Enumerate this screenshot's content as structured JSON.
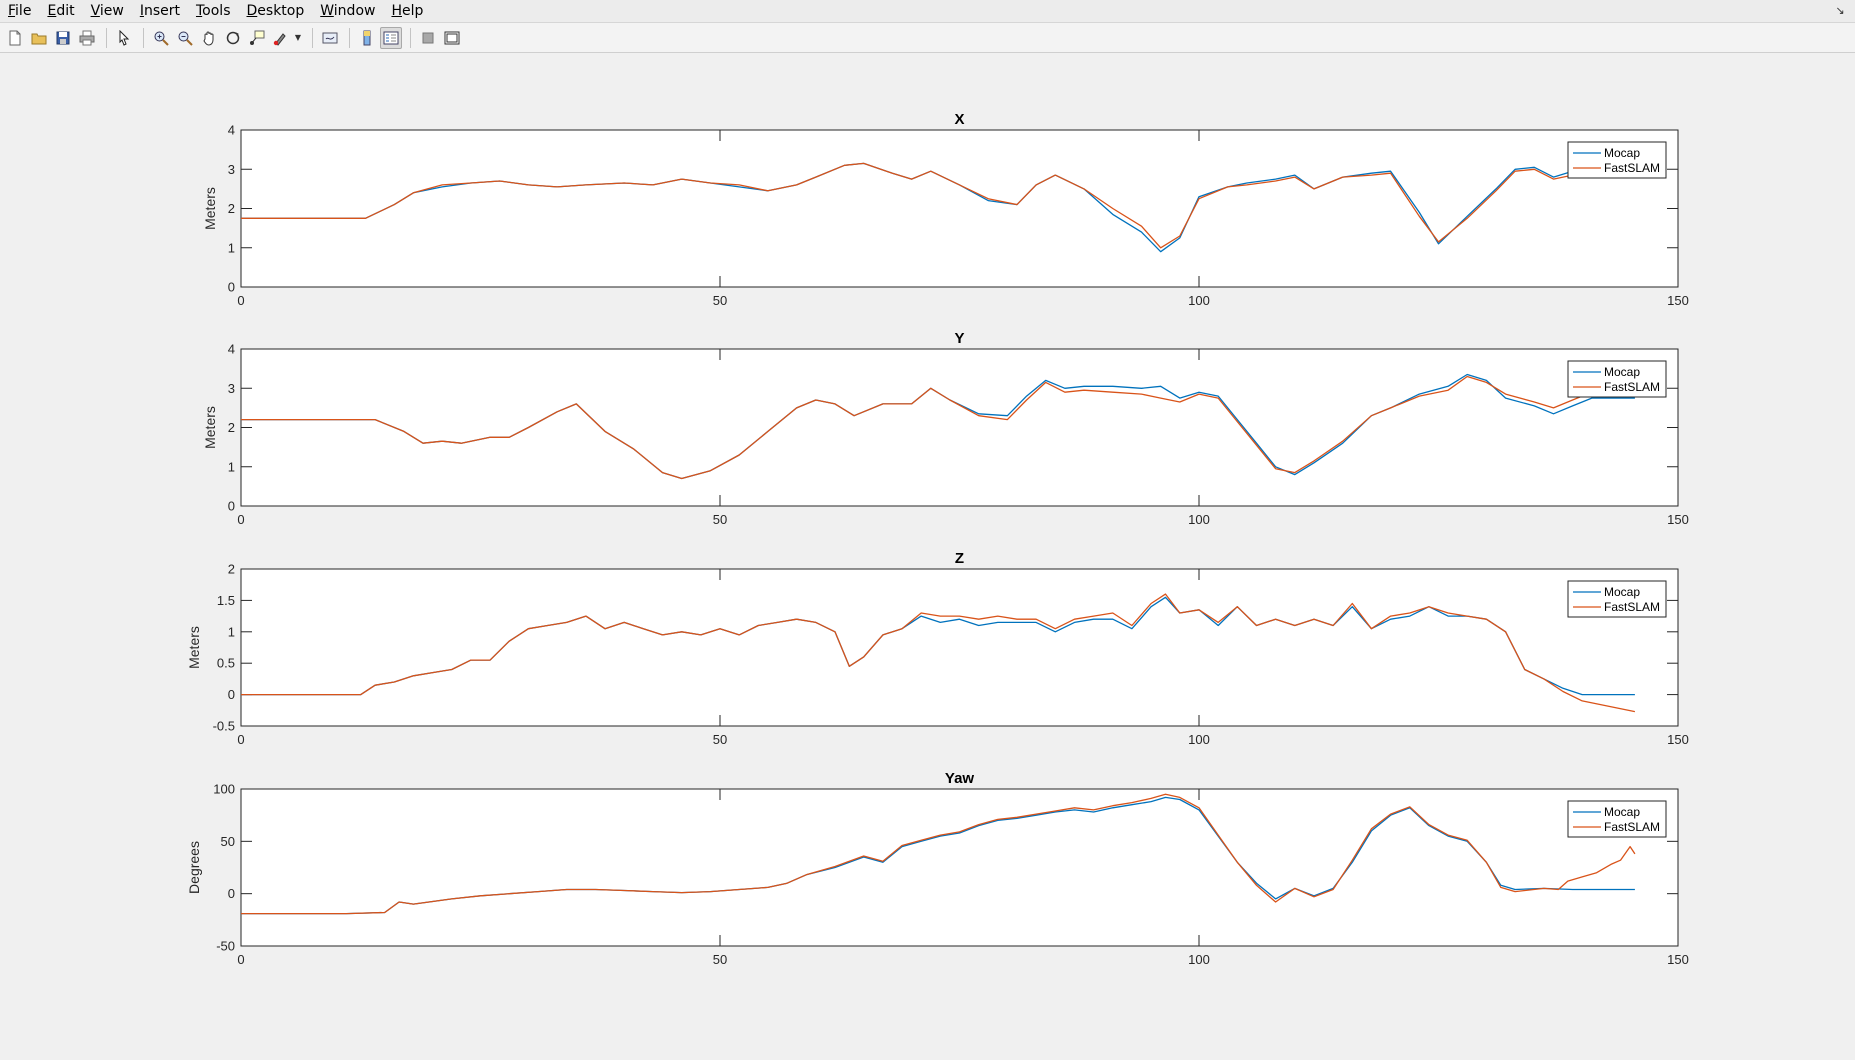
{
  "menu": {
    "items": [
      "File",
      "Edit",
      "View",
      "Insert",
      "Tools",
      "Desktop",
      "Window",
      "Help"
    ]
  },
  "toolbar": {
    "icons": [
      "new-figure-icon",
      "open-file-icon",
      "save-icon",
      "print-icon",
      "pointer-icon",
      "zoom-in-icon",
      "zoom-out-icon",
      "pan-icon",
      "rotate-3d-icon",
      "data-cursor-icon",
      "brush-icon",
      "link-plot-icon",
      "colorbar-icon",
      "legend-icon",
      "hide-plot-tools-icon",
      "show-plot-tools-icon"
    ]
  },
  "colors": {
    "mocap": "#0072BD",
    "fastslam": "#D95319",
    "axes_bg": "#ffffff",
    "figure_bg": "#f0f0f0"
  },
  "chart_data": [
    {
      "type": "line",
      "title": "X",
      "xlabel": "",
      "ylabel": "Meters",
      "xlim": [
        0,
        150
      ],
      "ylim": [
        0,
        4
      ],
      "xticks": [
        0,
        50,
        100,
        150
      ],
      "yticks": [
        0,
        1,
        2,
        3,
        4
      ],
      "legend_position": "top-right",
      "series": [
        {
          "name": "Mocap",
          "x": [
            0,
            13,
            16,
            18,
            21,
            24,
            27,
            30,
            33,
            36,
            40,
            43,
            46,
            49,
            52,
            55,
            58,
            60,
            63,
            65,
            68,
            70,
            72,
            75,
            78,
            81,
            83,
            85,
            88,
            91,
            94,
            96,
            98,
            100,
            103,
            105,
            108,
            110,
            112,
            115,
            118,
            120,
            123,
            125,
            128,
            131,
            133,
            135,
            137,
            139,
            140.5,
            145.5
          ],
          "y": [
            1.75,
            1.75,
            2.1,
            2.4,
            2.55,
            2.65,
            2.7,
            2.6,
            2.55,
            2.6,
            2.65,
            2.6,
            2.75,
            2.65,
            2.55,
            2.45,
            2.6,
            2.8,
            3.1,
            3.15,
            2.9,
            2.75,
            2.95,
            2.6,
            2.2,
            2.1,
            2.6,
            2.85,
            2.5,
            1.85,
            1.4,
            0.9,
            1.25,
            2.3,
            2.55,
            2.65,
            2.75,
            2.85,
            2.5,
            2.8,
            2.9,
            2.95,
            1.9,
            1.1,
            1.8,
            2.5,
            3.0,
            3.05,
            2.8,
            2.95,
            3.25,
            3.35
          ]
        },
        {
          "name": "FastSLAM",
          "x": [
            0,
            13,
            16,
            18,
            21,
            24,
            27,
            30,
            33,
            36,
            40,
            43,
            46,
            49,
            52,
            55,
            58,
            60,
            63,
            65,
            68,
            70,
            72,
            75,
            78,
            81,
            83,
            85,
            88,
            91,
            94,
            96,
            98,
            100,
            103,
            105,
            108,
            110,
            112,
            115,
            118,
            120,
            123,
            125,
            128,
            131,
            133,
            135,
            137,
            139,
            140.5,
            145.5
          ],
          "y": [
            1.75,
            1.75,
            2.1,
            2.4,
            2.6,
            2.65,
            2.7,
            2.6,
            2.55,
            2.6,
            2.65,
            2.6,
            2.75,
            2.65,
            2.6,
            2.45,
            2.6,
            2.8,
            3.1,
            3.15,
            2.9,
            2.75,
            2.95,
            2.6,
            2.25,
            2.1,
            2.6,
            2.85,
            2.5,
            2.0,
            1.55,
            1.0,
            1.3,
            2.25,
            2.55,
            2.6,
            2.7,
            2.8,
            2.5,
            2.8,
            2.85,
            2.9,
            1.8,
            1.15,
            1.75,
            2.45,
            2.95,
            3.0,
            2.75,
            2.85,
            3.1,
            3.2
          ]
        }
      ]
    },
    {
      "type": "line",
      "title": "Y",
      "xlabel": "",
      "ylabel": "Meters",
      "xlim": [
        0,
        150
      ],
      "ylim": [
        0,
        4
      ],
      "xticks": [
        0,
        50,
        100,
        150
      ],
      "yticks": [
        0,
        1,
        2,
        3,
        4
      ],
      "legend_position": "top-right",
      "series": [
        {
          "name": "Mocap",
          "x": [
            0,
            14,
            17,
            19,
            21,
            23,
            26,
            28,
            30,
            33,
            35,
            38,
            41,
            44,
            46,
            49,
            52,
            55,
            58,
            60,
            62,
            64,
            67,
            70,
            72,
            74,
            77,
            80,
            82,
            84,
            86,
            88,
            91,
            94,
            96,
            98,
            100,
            102,
            104,
            106,
            108,
            110,
            112,
            115,
            118,
            120,
            123,
            126,
            128,
            130,
            132,
            135,
            137,
            139,
            141,
            145.5
          ],
          "y": [
            2.2,
            2.2,
            1.9,
            1.6,
            1.65,
            1.6,
            1.75,
            1.75,
            2.0,
            2.4,
            2.6,
            1.9,
            1.45,
            0.85,
            0.7,
            0.9,
            1.3,
            1.9,
            2.5,
            2.7,
            2.6,
            2.3,
            2.6,
            2.6,
            3.0,
            2.7,
            2.35,
            2.3,
            2.8,
            3.2,
            3.0,
            3.05,
            3.05,
            3.0,
            3.05,
            2.75,
            2.9,
            2.8,
            2.2,
            1.6,
            1.0,
            0.8,
            1.1,
            1.6,
            2.3,
            2.5,
            2.85,
            3.05,
            3.35,
            3.2,
            2.75,
            2.55,
            2.35,
            2.55,
            2.75,
            2.75
          ]
        },
        {
          "name": "FastSLAM",
          "x": [
            0,
            14,
            17,
            19,
            21,
            23,
            26,
            28,
            30,
            33,
            35,
            38,
            41,
            44,
            46,
            49,
            52,
            55,
            58,
            60,
            62,
            64,
            67,
            70,
            72,
            74,
            77,
            80,
            82,
            84,
            86,
            88,
            91,
            94,
            96,
            98,
            100,
            102,
            104,
            106,
            108,
            110,
            112,
            115,
            118,
            120,
            123,
            126,
            128,
            130,
            132,
            135,
            137,
            139,
            141,
            145.5
          ],
          "y": [
            2.2,
            2.2,
            1.9,
            1.6,
            1.65,
            1.6,
            1.75,
            1.75,
            2.0,
            2.4,
            2.6,
            1.9,
            1.45,
            0.85,
            0.7,
            0.9,
            1.3,
            1.9,
            2.5,
            2.7,
            2.6,
            2.3,
            2.6,
            2.6,
            3.0,
            2.7,
            2.3,
            2.2,
            2.7,
            3.15,
            2.9,
            2.95,
            2.9,
            2.85,
            2.75,
            2.65,
            2.85,
            2.75,
            2.15,
            1.55,
            0.95,
            0.85,
            1.15,
            1.65,
            2.3,
            2.5,
            2.8,
            2.95,
            3.3,
            3.15,
            2.85,
            2.65,
            2.5,
            2.7,
            2.9,
            3.0
          ]
        }
      ]
    },
    {
      "type": "line",
      "title": "Z",
      "xlabel": "",
      "ylabel": "Meters",
      "xlim": [
        0,
        150
      ],
      "ylim": [
        -0.5,
        2
      ],
      "xticks": [
        0,
        50,
        100,
        150
      ],
      "yticks": [
        -0.5,
        0,
        0.5,
        1,
        1.5,
        2
      ],
      "legend_position": "top-right",
      "series": [
        {
          "name": "Mocap",
          "x": [
            0,
            12.5,
            14,
            16,
            18,
            20,
            22,
            24,
            26,
            28,
            30,
            32,
            34,
            36,
            38,
            40,
            42,
            44,
            46,
            48,
            50,
            52,
            54,
            56,
            58,
            60,
            62,
            63.5,
            65,
            67,
            69,
            71,
            73,
            75,
            77,
            79,
            81,
            83,
            85,
            87,
            89,
            91,
            93,
            95,
            96.5,
            98,
            100,
            102,
            104,
            106,
            108,
            110,
            112,
            114,
            116,
            118,
            120,
            122,
            124,
            126,
            128,
            130,
            132,
            134,
            136,
            138,
            140,
            145.5
          ],
          "y": [
            0,
            0,
            0.15,
            0.2,
            0.3,
            0.35,
            0.4,
            0.55,
            0.55,
            0.85,
            1.05,
            1.1,
            1.15,
            1.25,
            1.05,
            1.15,
            1.05,
            0.95,
            1.0,
            0.95,
            1.05,
            0.95,
            1.1,
            1.15,
            1.2,
            1.15,
            1.0,
            0.45,
            0.6,
            0.95,
            1.05,
            1.25,
            1.15,
            1.2,
            1.1,
            1.15,
            1.15,
            1.15,
            1.0,
            1.15,
            1.2,
            1.2,
            1.05,
            1.4,
            1.55,
            1.3,
            1.35,
            1.1,
            1.4,
            1.1,
            1.2,
            1.1,
            1.2,
            1.1,
            1.4,
            1.05,
            1.2,
            1.25,
            1.4,
            1.25,
            1.25,
            1.2,
            1.0,
            0.4,
            0.25,
            0.1,
            0.0,
            0.0
          ]
        },
        {
          "name": "FastSLAM",
          "x": [
            0,
            12.5,
            14,
            16,
            18,
            20,
            22,
            24,
            26,
            28,
            30,
            32,
            34,
            36,
            38,
            40,
            42,
            44,
            46,
            48,
            50,
            52,
            54,
            56,
            58,
            60,
            62,
            63.5,
            65,
            67,
            69,
            71,
            73,
            75,
            77,
            79,
            81,
            83,
            85,
            87,
            89,
            91,
            93,
            95,
            96.5,
            98,
            100,
            102,
            104,
            106,
            108,
            110,
            112,
            114,
            116,
            118,
            120,
            122,
            124,
            126,
            128,
            130,
            132,
            134,
            136,
            138,
            140,
            145.5
          ],
          "y": [
            0,
            0,
            0.15,
            0.2,
            0.3,
            0.35,
            0.4,
            0.55,
            0.55,
            0.85,
            1.05,
            1.1,
            1.15,
            1.25,
            1.05,
            1.15,
            1.05,
            0.95,
            1.0,
            0.95,
            1.05,
            0.95,
            1.1,
            1.15,
            1.2,
            1.15,
            1.0,
            0.45,
            0.6,
            0.95,
            1.05,
            1.3,
            1.25,
            1.25,
            1.2,
            1.25,
            1.2,
            1.2,
            1.05,
            1.2,
            1.25,
            1.3,
            1.1,
            1.45,
            1.6,
            1.3,
            1.35,
            1.15,
            1.4,
            1.1,
            1.2,
            1.1,
            1.2,
            1.1,
            1.45,
            1.05,
            1.25,
            1.3,
            1.4,
            1.3,
            1.25,
            1.2,
            1.0,
            0.4,
            0.25,
            0.05,
            -0.1,
            -0.27
          ]
        }
      ]
    },
    {
      "type": "line",
      "title": "Yaw",
      "xlabel": "",
      "ylabel": "Degrees",
      "xlim": [
        0,
        150
      ],
      "ylim": [
        -50,
        100
      ],
      "xticks": [
        0,
        50,
        100,
        150
      ],
      "yticks": [
        -50,
        0,
        50,
        100
      ],
      "legend_position": "top-right",
      "series": [
        {
          "name": "Mocap",
          "x": [
            0,
            11,
            15,
            16.5,
            18,
            22,
            25,
            28,
            31,
            34,
            37,
            40,
            43,
            46,
            49,
            52,
            55,
            57,
            59,
            62,
            65,
            67,
            69,
            71,
            73,
            75,
            77,
            79,
            81,
            83,
            85,
            87,
            89,
            91,
            93,
            95,
            96.5,
            98,
            100,
            102,
            104,
            106,
            108,
            110,
            112,
            114,
            116,
            118,
            120,
            122,
            124,
            126,
            128,
            130,
            131.5,
            133,
            136,
            139,
            142,
            145.5
          ],
          "y": [
            -19,
            -19,
            -18,
            -8,
            -10,
            -5,
            -2,
            0,
            2,
            4,
            4,
            3,
            2,
            1,
            2,
            4,
            6,
            10,
            18,
            25,
            35,
            30,
            45,
            50,
            55,
            58,
            65,
            70,
            72,
            75,
            78,
            80,
            78,
            82,
            85,
            88,
            92,
            90,
            80,
            55,
            30,
            10,
            -5,
            5,
            -2,
            5,
            30,
            60,
            75,
            82,
            65,
            55,
            50,
            30,
            8,
            4,
            5,
            4,
            4,
            4
          ]
        },
        {
          "name": "FastSLAM",
          "x": [
            0,
            11,
            15,
            16.5,
            18,
            22,
            25,
            28,
            31,
            34,
            37,
            40,
            43,
            46,
            49,
            52,
            55,
            57,
            59,
            62,
            65,
            67,
            69,
            71,
            73,
            75,
            77,
            79,
            81,
            83,
            85,
            87,
            89,
            91,
            93,
            95,
            96.5,
            98,
            100,
            102,
            104,
            106,
            108,
            110,
            112,
            114,
            116,
            118,
            120,
            122,
            124,
            126,
            128,
            130,
            131.5,
            133,
            136,
            137.5,
            138.5,
            140,
            141.5,
            143,
            144,
            145,
            145.5
          ],
          "y": [
            -19,
            -19,
            -18,
            -8,
            -10,
            -5,
            -2,
            0,
            2,
            4,
            4,
            3,
            2,
            1,
            2,
            4,
            6,
            10,
            18,
            26,
            36,
            31,
            46,
            51,
            56,
            59,
            66,
            71,
            73,
            76,
            79,
            82,
            80,
            84,
            87,
            91,
            95,
            92,
            82,
            56,
            30,
            8,
            -8,
            5,
            -3,
            4,
            32,
            62,
            76,
            83,
            66,
            56,
            51,
            30,
            6,
            2,
            5,
            4,
            12,
            16,
            20,
            28,
            32,
            45,
            38
          ]
        }
      ]
    }
  ]
}
